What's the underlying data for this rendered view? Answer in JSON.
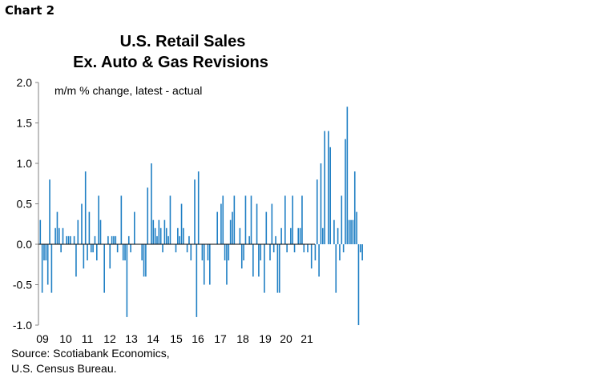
{
  "header": {
    "label": "Chart 2"
  },
  "chart_data": {
    "type": "bar",
    "title": [
      "U.S. Retail Sales",
      "Ex. Auto & Gas Revisions"
    ],
    "annotation": "m/m % change, latest - actual",
    "ylim": [
      -1.0,
      2.0
    ],
    "yticks": [
      "2.0",
      "1.5",
      "1.0",
      "0.5",
      "0.0",
      "-0.5",
      "-1.0"
    ],
    "xticks": [
      "09",
      "10",
      "11",
      "12",
      "13",
      "14",
      "15",
      "16",
      "17",
      "18",
      "19",
      "20",
      "21"
    ],
    "x_start": "2009-01",
    "bar_color": "#1f7fc4",
    "values": [
      0.3,
      -0.6,
      -0.2,
      -0.2,
      -0.5,
      0.8,
      -0.6,
      0.0,
      0.2,
      0.4,
      0.2,
      -0.1,
      0.2,
      0.0,
      0.1,
      0.1,
      0.1,
      0.0,
      0.1,
      -0.4,
      0.3,
      0.0,
      0.5,
      -0.3,
      0.9,
      -0.2,
      0.4,
      -0.1,
      -0.1,
      0.1,
      -0.2,
      0.6,
      0.3,
      0.0,
      -0.6,
      0.0,
      0.1,
      -0.3,
      0.1,
      0.1,
      0.1,
      -0.1,
      0.0,
      0.6,
      -0.2,
      -0.2,
      -0.9,
      0.1,
      -0.1,
      0.0,
      0.4,
      0.0,
      0.0,
      0.0,
      -0.2,
      -0.4,
      -0.4,
      0.7,
      0.0,
      1.0,
      0.3,
      0.2,
      0.1,
      0.3,
      0.2,
      -0.1,
      0.3,
      0.2,
      0.1,
      0.6,
      0.0,
      0.0,
      -0.1,
      0.2,
      0.1,
      0.5,
      0.2,
      0.0,
      -0.1,
      0.1,
      -0.2,
      0.0,
      0.8,
      -0.9,
      0.9,
      0.0,
      -0.2,
      -0.5,
      0.0,
      -0.2,
      -0.5,
      0.0,
      0.0,
      0.0,
      0.4,
      0.0,
      0.5,
      0.6,
      -0.2,
      -0.5,
      -0.2,
      0.3,
      0.4,
      0.6,
      0.0,
      0.0,
      0.2,
      -0.3,
      -0.2,
      0.6,
      0.0,
      0.1,
      0.6,
      -0.4,
      0.0,
      0.5,
      -0.4,
      -0.2,
      0.0,
      -0.6,
      0.4,
      0.0,
      -0.2,
      0.5,
      -0.1,
      0.1,
      -0.6,
      -0.6,
      0.2,
      0.0,
      0.6,
      -0.1,
      0.0,
      0.2,
      0.6,
      -0.1,
      0.0,
      0.2,
      0.2,
      0.6,
      -0.1,
      0.0,
      -0.1,
      0.0,
      -0.3,
      0.0,
      -0.2,
      0.8,
      -0.4,
      1.0,
      0.2,
      1.4,
      0.0,
      1.4,
      1.2,
      0.0,
      0.3,
      -0.6,
      0.2,
      -0.2,
      0.6,
      -0.1,
      1.3,
      1.7,
      0.3,
      0.3,
      0.3,
      0.9,
      0.4,
      -1.0,
      -0.1,
      -0.2
    ]
  },
  "source": {
    "line1": "Source: Scotiabank Economics,",
    "line2": "U.S. Census Bureau."
  }
}
